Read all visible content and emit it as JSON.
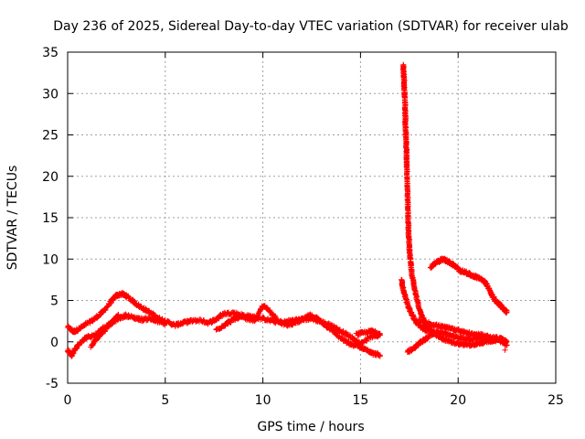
{
  "chart_data": {
    "type": "scatter",
    "title": "Day 236 of 2025, Sidereal Day-to-day VTEC variation (SDTVAR) for receiver ulab",
    "xlabel": "GPS time / hours",
    "ylabel": "SDTVAR / TECUs",
    "xlim": [
      0,
      25
    ],
    "ylim": [
      -5,
      35
    ],
    "xticks": [
      0,
      5,
      10,
      15,
      20,
      25
    ],
    "yticks": [
      -5,
      0,
      5,
      10,
      15,
      20,
      25,
      30,
      35
    ],
    "grid": true,
    "marker": "+",
    "series": [
      {
        "name": "SDTVAR",
        "color": "#ff0000",
        "paths": [
          [
            [
              0.0,
              1.8
            ],
            [
              0.3,
              1.2
            ],
            [
              0.6,
              1.6
            ],
            [
              1.0,
              2.2
            ],
            [
              1.4,
              2.8
            ],
            [
              1.8,
              3.6
            ],
            [
              2.2,
              4.8
            ],
            [
              2.5,
              5.6
            ],
            [
              2.8,
              5.8
            ],
            [
              3.1,
              5.4
            ],
            [
              3.5,
              4.6
            ],
            [
              3.9,
              4.0
            ],
            [
              4.3,
              3.4
            ],
            [
              4.7,
              2.8
            ],
            [
              5.1,
              2.4
            ],
            [
              5.5,
              2.0
            ],
            [
              5.9,
              2.3
            ],
            [
              6.3,
              2.5
            ],
            [
              6.8,
              2.6
            ],
            [
              7.2,
              2.3
            ],
            [
              7.6,
              2.7
            ],
            [
              8.0,
              3.4
            ],
            [
              8.5,
              3.5
            ],
            [
              9.0,
              3.2
            ],
            [
              9.5,
              3.0
            ],
            [
              10.0,
              2.8
            ],
            [
              10.5,
              2.5
            ],
            [
              11.0,
              2.3
            ],
            [
              11.5,
              2.6
            ],
            [
              12.0,
              2.7
            ],
            [
              12.5,
              2.8
            ],
            [
              13.0,
              2.4
            ],
            [
              13.5,
              2.0
            ],
            [
              14.0,
              1.3
            ],
            [
              14.5,
              0.6
            ],
            [
              15.0,
              -0.2
            ],
            [
              15.5,
              0.6
            ],
            [
              16.0,
              0.8
            ]
          ],
          [
            [
              0.0,
              -1.0
            ],
            [
              0.2,
              -1.6
            ],
            [
              0.4,
              -0.8
            ],
            [
              0.7,
              0.0
            ],
            [
              1.0,
              0.6
            ],
            [
              1.4,
              0.8
            ],
            [
              1.8,
              1.6
            ],
            [
              2.2,
              2.2
            ],
            [
              2.6,
              2.8
            ],
            [
              3.0,
              3.2
            ],
            [
              3.4,
              2.9
            ],
            [
              3.8,
              2.7
            ],
            [
              4.2,
              2.8
            ],
            [
              4.6,
              2.5
            ],
            [
              5.0,
              2.2
            ]
          ],
          [
            [
              1.2,
              -0.6
            ],
            [
              1.5,
              0.4
            ],
            [
              1.9,
              1.4
            ],
            [
              2.3,
              2.4
            ],
            [
              2.6,
              3.3
            ]
          ],
          [
            [
              7.6,
              1.4
            ],
            [
              8.0,
              2.0
            ],
            [
              8.4,
              2.6
            ],
            [
              8.8,
              3.0
            ],
            [
              9.2,
              2.8
            ],
            [
              9.6,
              2.6
            ],
            [
              10.0,
              4.4
            ],
            [
              10.4,
              3.6
            ],
            [
              10.8,
              2.5
            ],
            [
              11.2,
              2.0
            ],
            [
              11.6,
              2.3
            ],
            [
              12.0,
              2.6
            ],
            [
              12.4,
              3.2
            ],
            [
              12.8,
              2.8
            ],
            [
              13.2,
              2.0
            ],
            [
              13.6,
              1.3
            ],
            [
              14.0,
              0.4
            ],
            [
              14.4,
              -0.2
            ],
            [
              14.8,
              -0.5
            ],
            [
              15.2,
              -0.8
            ],
            [
              15.6,
              -1.4
            ],
            [
              16.0,
              -1.6
            ]
          ],
          [
            [
              14.8,
              0.9
            ],
            [
              15.2,
              1.1
            ],
            [
              15.6,
              1.3
            ],
            [
              16.0,
              1.0
            ]
          ],
          [
            [
              17.2,
              33.5
            ],
            [
              17.22,
              32.2
            ],
            [
              17.24,
              30.8
            ],
            [
              17.26,
              29.8
            ],
            [
              17.28,
              28.6
            ],
            [
              17.3,
              27.0
            ],
            [
              17.32,
              25.5
            ],
            [
              17.34,
              24.0
            ],
            [
              17.36,
              22.5
            ],
            [
              17.38,
              21.0
            ],
            [
              17.4,
              19.0
            ],
            [
              17.42,
              17.0
            ],
            [
              17.44,
              15.0
            ],
            [
              17.46,
              13.2
            ],
            [
              17.5,
              11.5
            ],
            [
              17.55,
              10.0
            ],
            [
              17.6,
              8.8
            ],
            [
              17.7,
              7.2
            ],
            [
              17.85,
              5.6
            ],
            [
              18.0,
              4.0
            ],
            [
              18.2,
              2.8
            ],
            [
              18.4,
              1.8
            ],
            [
              18.7,
              1.2
            ],
            [
              19.0,
              0.6
            ],
            [
              19.4,
              0.2
            ],
            [
              19.8,
              -0.1
            ],
            [
              20.2,
              -0.3
            ],
            [
              20.6,
              -0.4
            ],
            [
              21.0,
              -0.2
            ],
            [
              21.4,
              0.0
            ],
            [
              21.8,
              0.2
            ],
            [
              22.2,
              0.4
            ],
            [
              22.5,
              0.0
            ]
          ],
          [
            [
              17.1,
              7.5
            ],
            [
              17.2,
              6.2
            ],
            [
              17.35,
              5.0
            ],
            [
              17.5,
              4.0
            ],
            [
              17.7,
              3.0
            ],
            [
              17.9,
              2.2
            ],
            [
              18.2,
              1.6
            ],
            [
              18.5,
              1.3
            ]
          ],
          [
            [
              17.4,
              -1.2
            ],
            [
              17.7,
              -0.8
            ],
            [
              18.0,
              -0.2
            ],
            [
              18.3,
              0.3
            ],
            [
              18.6,
              0.8
            ],
            [
              19.0,
              1.2
            ],
            [
              19.4,
              1.0
            ],
            [
              19.8,
              0.6
            ],
            [
              20.2,
              0.4
            ],
            [
              20.6,
              0.3
            ],
            [
              21.0,
              0.5
            ],
            [
              21.4,
              0.4
            ],
            [
              21.8,
              0.2
            ],
            [
              22.2,
              0.1
            ],
            [
              22.5,
              -0.4
            ]
          ],
          [
            [
              18.0,
              2.6
            ],
            [
              18.4,
              2.3
            ],
            [
              18.8,
              2.0
            ],
            [
              19.2,
              1.8
            ],
            [
              19.6,
              1.6
            ],
            [
              20.0,
              1.4
            ],
            [
              20.4,
              1.1
            ],
            [
              20.8,
              0.9
            ],
            [
              21.2,
              0.8
            ],
            [
              21.6,
              0.6
            ],
            [
              22.0,
              0.5
            ]
          ],
          [
            [
              18.6,
              9.0
            ],
            [
              18.9,
              9.6
            ],
            [
              19.2,
              10.0
            ],
            [
              19.5,
              9.7
            ],
            [
              19.8,
              9.2
            ],
            [
              20.1,
              8.6
            ],
            [
              20.4,
              8.4
            ],
            [
              20.7,
              8.0
            ],
            [
              21.0,
              7.8
            ],
            [
              21.3,
              7.4
            ],
            [
              21.5,
              6.8
            ],
            [
              21.7,
              5.8
            ],
            [
              21.9,
              5.0
            ],
            [
              22.1,
              4.6
            ],
            [
              22.3,
              4.0
            ],
            [
              22.5,
              3.6
            ]
          ]
        ],
        "isolated_points": [
          [
            22.4,
            -1.0
          ]
        ]
      }
    ]
  }
}
